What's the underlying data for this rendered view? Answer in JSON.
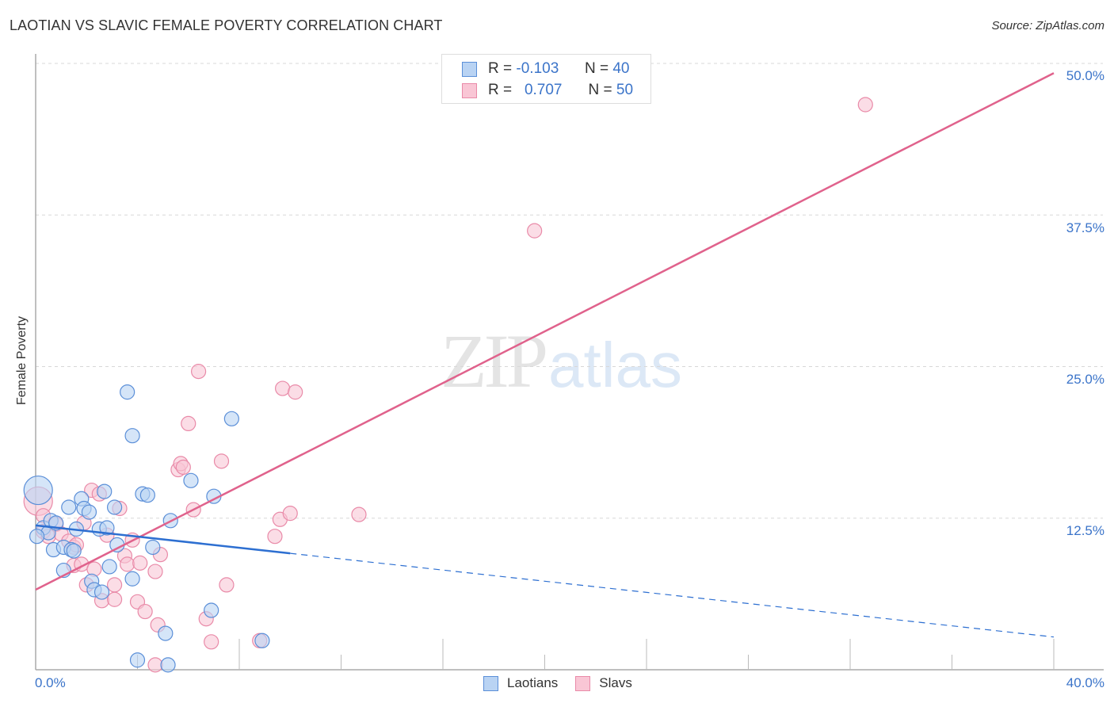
{
  "header": {
    "title": "LAOTIAN VS SLAVIC FEMALE POVERTY CORRELATION CHART",
    "source": "Source: ZipAtlas.com"
  },
  "legend": {
    "rows": [
      {
        "series": "Laotians",
        "r_label": "R =",
        "r_value": "-0.103",
        "n_label": "N =",
        "n_value": "40"
      },
      {
        "series": "Slavs",
        "r_label": "R =",
        "r_value": "0.707",
        "n_label": "N =",
        "n_value": "50"
      }
    ],
    "bottom": [
      "Laotians",
      "Slavs"
    ]
  },
  "axes": {
    "ylabel": "Female Poverty",
    "x_ticks": [
      "0.0%",
      "40.0%"
    ],
    "y_ticks": [
      "50.0%",
      "37.5%",
      "25.0%",
      "12.5%"
    ]
  },
  "watermark": {
    "zip": "ZIP",
    "atlas": "atlas"
  },
  "colors": {
    "laotians_fill": "#b9d3f3",
    "laotians_stroke": "#5b8fd8",
    "laotians_line": "#2d6fd1",
    "slavs_fill": "#f9c6d5",
    "slavs_stroke": "#e98aa8",
    "slavs_line": "#e0628c",
    "tick_text": "#3b74c9"
  },
  "chart_data": {
    "type": "scatter",
    "title": "LAOTIAN VS SLAVIC FEMALE POVERTY CORRELATION CHART",
    "xlabel": "",
    "ylabel": "Female Poverty",
    "xlim": [
      0,
      40
    ],
    "ylim": [
      0,
      50
    ],
    "x_ticks": [
      0,
      40
    ],
    "y_ticks": [
      12.5,
      25.0,
      37.5,
      50.0
    ],
    "grid": {
      "horizontal_dashed": true
    },
    "legend_position": "top-center",
    "series": [
      {
        "name": "Laotians",
        "r": -0.103,
        "n": 40,
        "trend": {
          "x0": 0,
          "y0": 11.9,
          "x1": 40,
          "y1": 2.7,
          "solid_until_x": 10
        },
        "points": [
          [
            0.1,
            14.8
          ],
          [
            0.3,
            11.7
          ],
          [
            0.5,
            11.3
          ],
          [
            0.6,
            12.3
          ],
          [
            0.7,
            9.9
          ],
          [
            0.8,
            12.1
          ],
          [
            1.1,
            10.1
          ],
          [
            1.1,
            8.2
          ],
          [
            1.3,
            13.4
          ],
          [
            1.4,
            9.9
          ],
          [
            1.5,
            9.8
          ],
          [
            1.6,
            11.6
          ],
          [
            1.8,
            14.1
          ],
          [
            1.9,
            13.3
          ],
          [
            2.1,
            13.0
          ],
          [
            2.2,
            7.3
          ],
          [
            2.3,
            6.6
          ],
          [
            2.5,
            11.6
          ],
          [
            2.6,
            6.4
          ],
          [
            2.7,
            14.7
          ],
          [
            2.8,
            11.7
          ],
          [
            2.9,
            8.5
          ],
          [
            3.1,
            13.4
          ],
          [
            3.2,
            10.3
          ],
          [
            3.6,
            22.9
          ],
          [
            3.8,
            19.3
          ],
          [
            3.8,
            7.5
          ],
          [
            4.0,
            0.8
          ],
          [
            4.2,
            14.5
          ],
          [
            4.4,
            14.4
          ],
          [
            4.6,
            10.1
          ],
          [
            5.1,
            3.0
          ],
          [
            5.2,
            0.4
          ],
          [
            5.3,
            12.3
          ],
          [
            6.1,
            15.6
          ],
          [
            6.9,
            4.9
          ],
          [
            7.0,
            14.3
          ],
          [
            7.7,
            20.7
          ],
          [
            8.9,
            2.4
          ],
          [
            0.05,
            11.0
          ]
        ]
      },
      {
        "name": "Slavs",
        "r": 0.707,
        "n": 50,
        "trend": {
          "x0": 0,
          "y0": 6.6,
          "x1": 40,
          "y1": 49.2
        },
        "points": [
          [
            0.1,
            13.9
          ],
          [
            0.3,
            11.4
          ],
          [
            0.5,
            11.0
          ],
          [
            0.8,
            12.0
          ],
          [
            1.0,
            11.2
          ],
          [
            1.3,
            10.6
          ],
          [
            1.5,
            10.1
          ],
          [
            1.5,
            8.6
          ],
          [
            1.6,
            10.3
          ],
          [
            1.8,
            8.7
          ],
          [
            2.0,
            7.0
          ],
          [
            2.2,
            14.8
          ],
          [
            2.3,
            8.3
          ],
          [
            2.5,
            14.5
          ],
          [
            2.6,
            5.7
          ],
          [
            2.8,
            11.1
          ],
          [
            3.1,
            5.8
          ],
          [
            3.1,
            7.0
          ],
          [
            3.3,
            13.3
          ],
          [
            3.5,
            9.4
          ],
          [
            3.6,
            8.7
          ],
          [
            3.8,
            10.7
          ],
          [
            4.0,
            5.6
          ],
          [
            4.1,
            8.8
          ],
          [
            4.3,
            4.8
          ],
          [
            4.7,
            8.1
          ],
          [
            4.8,
            3.7
          ],
          [
            4.7,
            0.4
          ],
          [
            4.9,
            9.5
          ],
          [
            5.6,
            16.5
          ],
          [
            5.7,
            17.0
          ],
          [
            5.8,
            16.7
          ],
          [
            6.0,
            20.3
          ],
          [
            6.2,
            13.2
          ],
          [
            6.4,
            24.6
          ],
          [
            6.7,
            4.2
          ],
          [
            6.9,
            2.3
          ],
          [
            7.3,
            17.2
          ],
          [
            7.5,
            7.0
          ],
          [
            8.8,
            2.4
          ],
          [
            9.4,
            11.0
          ],
          [
            9.6,
            12.4
          ],
          [
            9.7,
            23.2
          ],
          [
            10.0,
            12.9
          ],
          [
            10.2,
            22.9
          ],
          [
            12.7,
            12.8
          ],
          [
            19.6,
            36.2
          ],
          [
            32.6,
            46.6
          ],
          [
            0.3,
            12.7
          ],
          [
            1.9,
            12.1
          ]
        ]
      }
    ]
  }
}
